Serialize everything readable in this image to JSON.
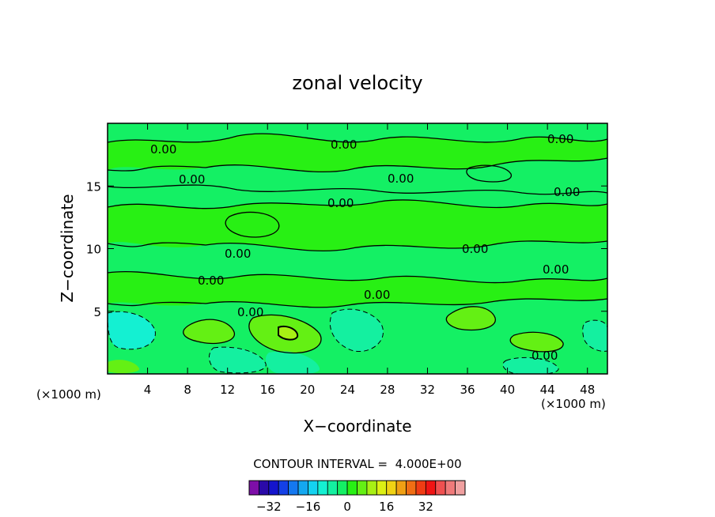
{
  "chart_data": {
    "type": "heatmap",
    "title": "zonal velocity",
    "xlabel": "X−coordinate",
    "ylabel": "Z−coordinate",
    "x_unit_left": "(×1000 m)",
    "x_unit_right": "(×1000 m)",
    "xlim": [
      0,
      50
    ],
    "ylim": [
      0,
      20
    ],
    "x_ticks": [
      4,
      8,
      12,
      16,
      20,
      24,
      28,
      32,
      36,
      40,
      44,
      48
    ],
    "y_ticks": [
      5,
      10,
      15
    ],
    "contour_labels": [
      "0.00",
      "0.00",
      "0.00",
      "0.00",
      "0.00",
      "0.00",
      "0.00",
      "0.00",
      "0.00",
      "0.00",
      "0.00",
      "0.00",
      "0.00",
      "0.00"
    ],
    "contour_interval_text": "CONTOUR INTERVAL =  4.000E+00",
    "colorbar": {
      "ticks": [
        "−32",
        "−16",
        "0",
        "16",
        "32"
      ],
      "colors": [
        "#7d0ea8",
        "#2a0aa8",
        "#1414cc",
        "#1440e6",
        "#1478f0",
        "#14a8f0",
        "#14d2f0",
        "#14f0d2",
        "#14f0a0",
        "#14f064",
        "#28f014",
        "#64f014",
        "#a8f014",
        "#dcf014",
        "#f0d214",
        "#f0a014",
        "#f06e14",
        "#f03c14",
        "#f01414",
        "#f05050",
        "#f07a7a",
        "#f0a0a0"
      ]
    },
    "field_colors": {
      "background": "#14f064",
      "strong_positive": "#28f014",
      "positive_peak": "#64f014",
      "weak_negative": "#14f0a0",
      "negative": "#14f0d2",
      "positive_core": "#a8f014"
    }
  }
}
